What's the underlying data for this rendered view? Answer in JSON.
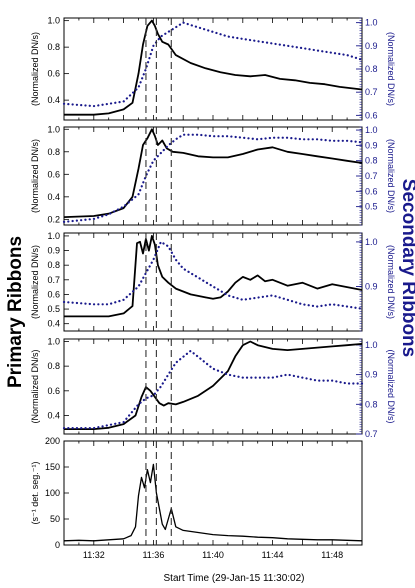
{
  "figure": {
    "left_label": "Primary Ribbons",
    "right_label": "Secondary Ribbons",
    "xlabel": "Start Time (29-Jan-15 11:30:02)",
    "xticks": [
      "11:32",
      "11:36",
      "11:40",
      "11:44",
      "11:48"
    ],
    "colors": {
      "primary": "#000000",
      "secondary": "#1a1a8c",
      "dash": "#333333"
    },
    "flare_markers_min": [
      5.5,
      6.2,
      7.2
    ]
  },
  "chart_data": [
    {
      "type": "line",
      "xlim": [
        0,
        20
      ],
      "ylim": [
        0.25,
        1.02
      ],
      "y2lim": [
        0.58,
        1.02
      ],
      "ylabel": "(Normalized DN/s)",
      "y2label": "(Normalized DN/s)",
      "yticks": [
        "0.4",
        "0.6",
        "0.8",
        "1.0"
      ],
      "ytick_values": [
        0.4,
        0.6,
        0.8,
        1.0
      ],
      "y2ticks": [
        "0.6",
        "0.7",
        "0.8",
        "0.9",
        "1.0"
      ],
      "y2tick_values": [
        0.6,
        0.7,
        0.8,
        0.9,
        1.0
      ],
      "series": [
        {
          "style": "solid",
          "axis": "left",
          "x": [
            0,
            2,
            3,
            4,
            4.6,
            5.0,
            5.3,
            5.6,
            5.9,
            6.1,
            6.3,
            6.6,
            7.0,
            7.5,
            8.5,
            9.5,
            10.5,
            11.5,
            12.5,
            13.5,
            14.5,
            15.5,
            16.5,
            17.5,
            18.5,
            20
          ],
          "y": [
            0.29,
            0.29,
            0.3,
            0.33,
            0.38,
            0.6,
            0.82,
            0.96,
            1.0,
            0.96,
            0.9,
            0.84,
            0.82,
            0.74,
            0.68,
            0.64,
            0.61,
            0.59,
            0.58,
            0.59,
            0.56,
            0.55,
            0.53,
            0.52,
            0.5,
            0.48
          ]
        },
        {
          "style": "dotted",
          "axis": "right",
          "x": [
            0,
            2,
            3,
            4,
            5,
            5.5,
            6,
            6.5,
            7,
            7.5,
            8,
            8.5,
            9,
            10,
            11,
            12,
            13,
            14,
            15,
            16,
            17,
            18,
            19,
            20
          ],
          "y": [
            0.65,
            0.64,
            0.65,
            0.66,
            0.72,
            0.8,
            0.9,
            0.94,
            0.96,
            0.98,
            1.0,
            0.99,
            0.98,
            0.96,
            0.94,
            0.93,
            0.92,
            0.91,
            0.9,
            0.89,
            0.88,
            0.87,
            0.86,
            0.84
          ]
        }
      ]
    },
    {
      "type": "line",
      "xlim": [
        0,
        20
      ],
      "ylim": [
        0.15,
        1.02
      ],
      "y2lim": [
        0.38,
        1.02
      ],
      "ylabel": "(Normalized DN/s)",
      "y2label": "(Normalized DN/s)",
      "yticks": [
        "0.2",
        "0.4",
        "0.6",
        "0.8",
        "1.0"
      ],
      "ytick_values": [
        0.2,
        0.4,
        0.6,
        0.8,
        1.0
      ],
      "y2ticks": [
        "0.5",
        "0.6",
        "0.7",
        "0.8",
        "0.9",
        "1.0"
      ],
      "y2tick_values": [
        0.5,
        0.6,
        0.7,
        0.8,
        0.9,
        1.0
      ],
      "series": [
        {
          "style": "solid",
          "axis": "left",
          "x": [
            0,
            2,
            3,
            4,
            4.6,
            5.0,
            5.3,
            5.6,
            5.9,
            6.1,
            6.3,
            6.6,
            6.9,
            7.3,
            8,
            9,
            10,
            11,
            12,
            13,
            14,
            15,
            16,
            17,
            18,
            19,
            20
          ],
          "y": [
            0.22,
            0.23,
            0.25,
            0.3,
            0.4,
            0.65,
            0.86,
            0.92,
            1.0,
            0.94,
            0.86,
            0.9,
            0.83,
            0.8,
            0.79,
            0.76,
            0.75,
            0.75,
            0.78,
            0.82,
            0.84,
            0.8,
            0.78,
            0.76,
            0.74,
            0.72,
            0.7
          ]
        },
        {
          "style": "dotted",
          "axis": "right",
          "x": [
            0,
            2,
            3,
            4,
            5,
            5.5,
            6,
            6.5,
            7,
            7.5,
            8,
            9,
            10,
            11,
            12,
            13,
            14,
            15,
            16,
            17,
            18,
            19,
            20
          ],
          "y": [
            0.4,
            0.42,
            0.45,
            0.5,
            0.58,
            0.7,
            0.8,
            0.85,
            0.9,
            0.94,
            0.97,
            0.97,
            0.96,
            0.96,
            0.95,
            0.94,
            0.95,
            0.95,
            0.94,
            0.94,
            0.93,
            0.93,
            0.92
          ]
        }
      ]
    },
    {
      "type": "line",
      "xlim": [
        0,
        20
      ],
      "ylim": [
        0.35,
        1.02
      ],
      "y2lim": [
        0.8,
        1.02
      ],
      "ylabel": "(Normalized DN/s)",
      "y2label": "(Normalized DN/s)",
      "yticks": [
        "0.4",
        "0.5",
        "0.6",
        "0.7",
        "0.8",
        "0.9",
        "1.0"
      ],
      "ytick_values": [
        0.4,
        0.5,
        0.6,
        0.7,
        0.8,
        0.9,
        1.0
      ],
      "y2ticks": [
        "0.9",
        "1.0"
      ],
      "y2tick_values": [
        0.9,
        1.0
      ],
      "series": [
        {
          "style": "solid",
          "axis": "left",
          "x": [
            0,
            2,
            3,
            4,
            4.6,
            4.9,
            5.1,
            5.3,
            5.5,
            5.7,
            5.9,
            6.1,
            6.3,
            6.6,
            7,
            7.5,
            8,
            8.5,
            9,
            9.5,
            10,
            10.5,
            11,
            11.5,
            12,
            12.5,
            13,
            13.5,
            14,
            15,
            16,
            17,
            18,
            19,
            20
          ],
          "y": [
            0.45,
            0.45,
            0.45,
            0.47,
            0.52,
            0.95,
            0.96,
            0.88,
            0.98,
            0.9,
            1.0,
            0.94,
            0.8,
            0.72,
            0.68,
            0.64,
            0.62,
            0.6,
            0.59,
            0.58,
            0.57,
            0.58,
            0.62,
            0.68,
            0.72,
            0.7,
            0.73,
            0.69,
            0.7,
            0.66,
            0.68,
            0.64,
            0.67,
            0.65,
            0.63
          ]
        },
        {
          "style": "dotted",
          "axis": "right",
          "x": [
            0,
            2,
            3,
            4,
            5,
            5.5,
            6,
            6.5,
            7,
            7.5,
            8,
            8.5,
            9,
            9.5,
            10,
            10.5,
            11,
            12,
            13,
            14,
            15,
            16,
            17,
            18,
            19,
            20
          ],
          "y": [
            0.865,
            0.86,
            0.86,
            0.87,
            0.9,
            0.93,
            0.96,
            1.0,
            0.99,
            0.96,
            0.94,
            0.93,
            0.92,
            0.91,
            0.9,
            0.89,
            0.88,
            0.87,
            0.875,
            0.88,
            0.87,
            0.86,
            0.855,
            0.86,
            0.855,
            0.85
          ]
        }
      ]
    },
    {
      "type": "line",
      "xlim": [
        0,
        20
      ],
      "ylim": [
        0.25,
        1.02
      ],
      "y2lim": [
        0.7,
        1.02
      ],
      "ylabel": "(Normalized DN/s)",
      "y2label": "(Normalized DN/s)",
      "yticks": [
        "0.4",
        "0.6",
        "0.8",
        "1.0"
      ],
      "ytick_values": [
        0.4,
        0.6,
        0.8,
        1.0
      ],
      "y2ticks": [
        "0.7",
        "0.8",
        "0.9",
        "1.0"
      ],
      "y2tick_values": [
        0.7,
        0.8,
        0.9,
        1.0
      ],
      "series": [
        {
          "style": "solid",
          "axis": "left",
          "x": [
            0,
            2,
            3,
            4,
            4.8,
            5.2,
            5.5,
            5.8,
            6.1,
            6.4,
            6.7,
            7.0,
            7.5,
            8,
            9,
            10,
            11,
            11.5,
            12,
            12.5,
            13,
            14,
            15,
            16,
            17,
            18,
            19,
            20
          ],
          "y": [
            0.29,
            0.29,
            0.3,
            0.33,
            0.4,
            0.55,
            0.63,
            0.6,
            0.55,
            0.5,
            0.48,
            0.5,
            0.49,
            0.51,
            0.56,
            0.64,
            0.76,
            0.88,
            0.97,
            1.0,
            0.97,
            0.94,
            0.93,
            0.94,
            0.95,
            0.96,
            0.97,
            0.98
          ]
        },
        {
          "style": "dotted",
          "axis": "right",
          "x": [
            0,
            2,
            3,
            4,
            5,
            5.5,
            6,
            6.5,
            7,
            7.5,
            8,
            8.5,
            9,
            10,
            11,
            12,
            13,
            14,
            15,
            16,
            17,
            18,
            19,
            20
          ],
          "y": [
            0.72,
            0.72,
            0.73,
            0.74,
            0.8,
            0.82,
            0.83,
            0.86,
            0.9,
            0.94,
            0.96,
            0.98,
            0.96,
            0.92,
            0.9,
            0.89,
            0.89,
            0.89,
            0.9,
            0.89,
            0.88,
            0.88,
            0.87,
            0.87
          ]
        }
      ]
    },
    {
      "type": "line",
      "xlim": [
        0,
        20
      ],
      "ylim": [
        0,
        200
      ],
      "ylabel": "(s⁻¹ det. seg.⁻¹)",
      "yticks": [
        "0",
        "50",
        "100",
        "150",
        "200"
      ],
      "ytick_values": [
        0,
        50,
        100,
        150,
        200
      ],
      "series": [
        {
          "style": "solid",
          "axis": "left",
          "x": [
            0,
            1,
            2,
            3,
            4,
            4.5,
            4.8,
            5.0,
            5.2,
            5.4,
            5.6,
            5.8,
            6.0,
            6.2,
            6.4,
            6.6,
            6.8,
            7.0,
            7.2,
            7.5,
            8,
            9,
            10,
            11,
            12,
            13,
            14,
            15,
            16,
            17,
            18,
            19,
            20
          ],
          "y": [
            8,
            9,
            8,
            10,
            12,
            18,
            35,
            95,
            130,
            110,
            145,
            120,
            155,
            100,
            70,
            40,
            30,
            50,
            70,
            35,
            28,
            24,
            20,
            18,
            17,
            15,
            14,
            12,
            11,
            10,
            10,
            9,
            8
          ]
        }
      ]
    }
  ]
}
